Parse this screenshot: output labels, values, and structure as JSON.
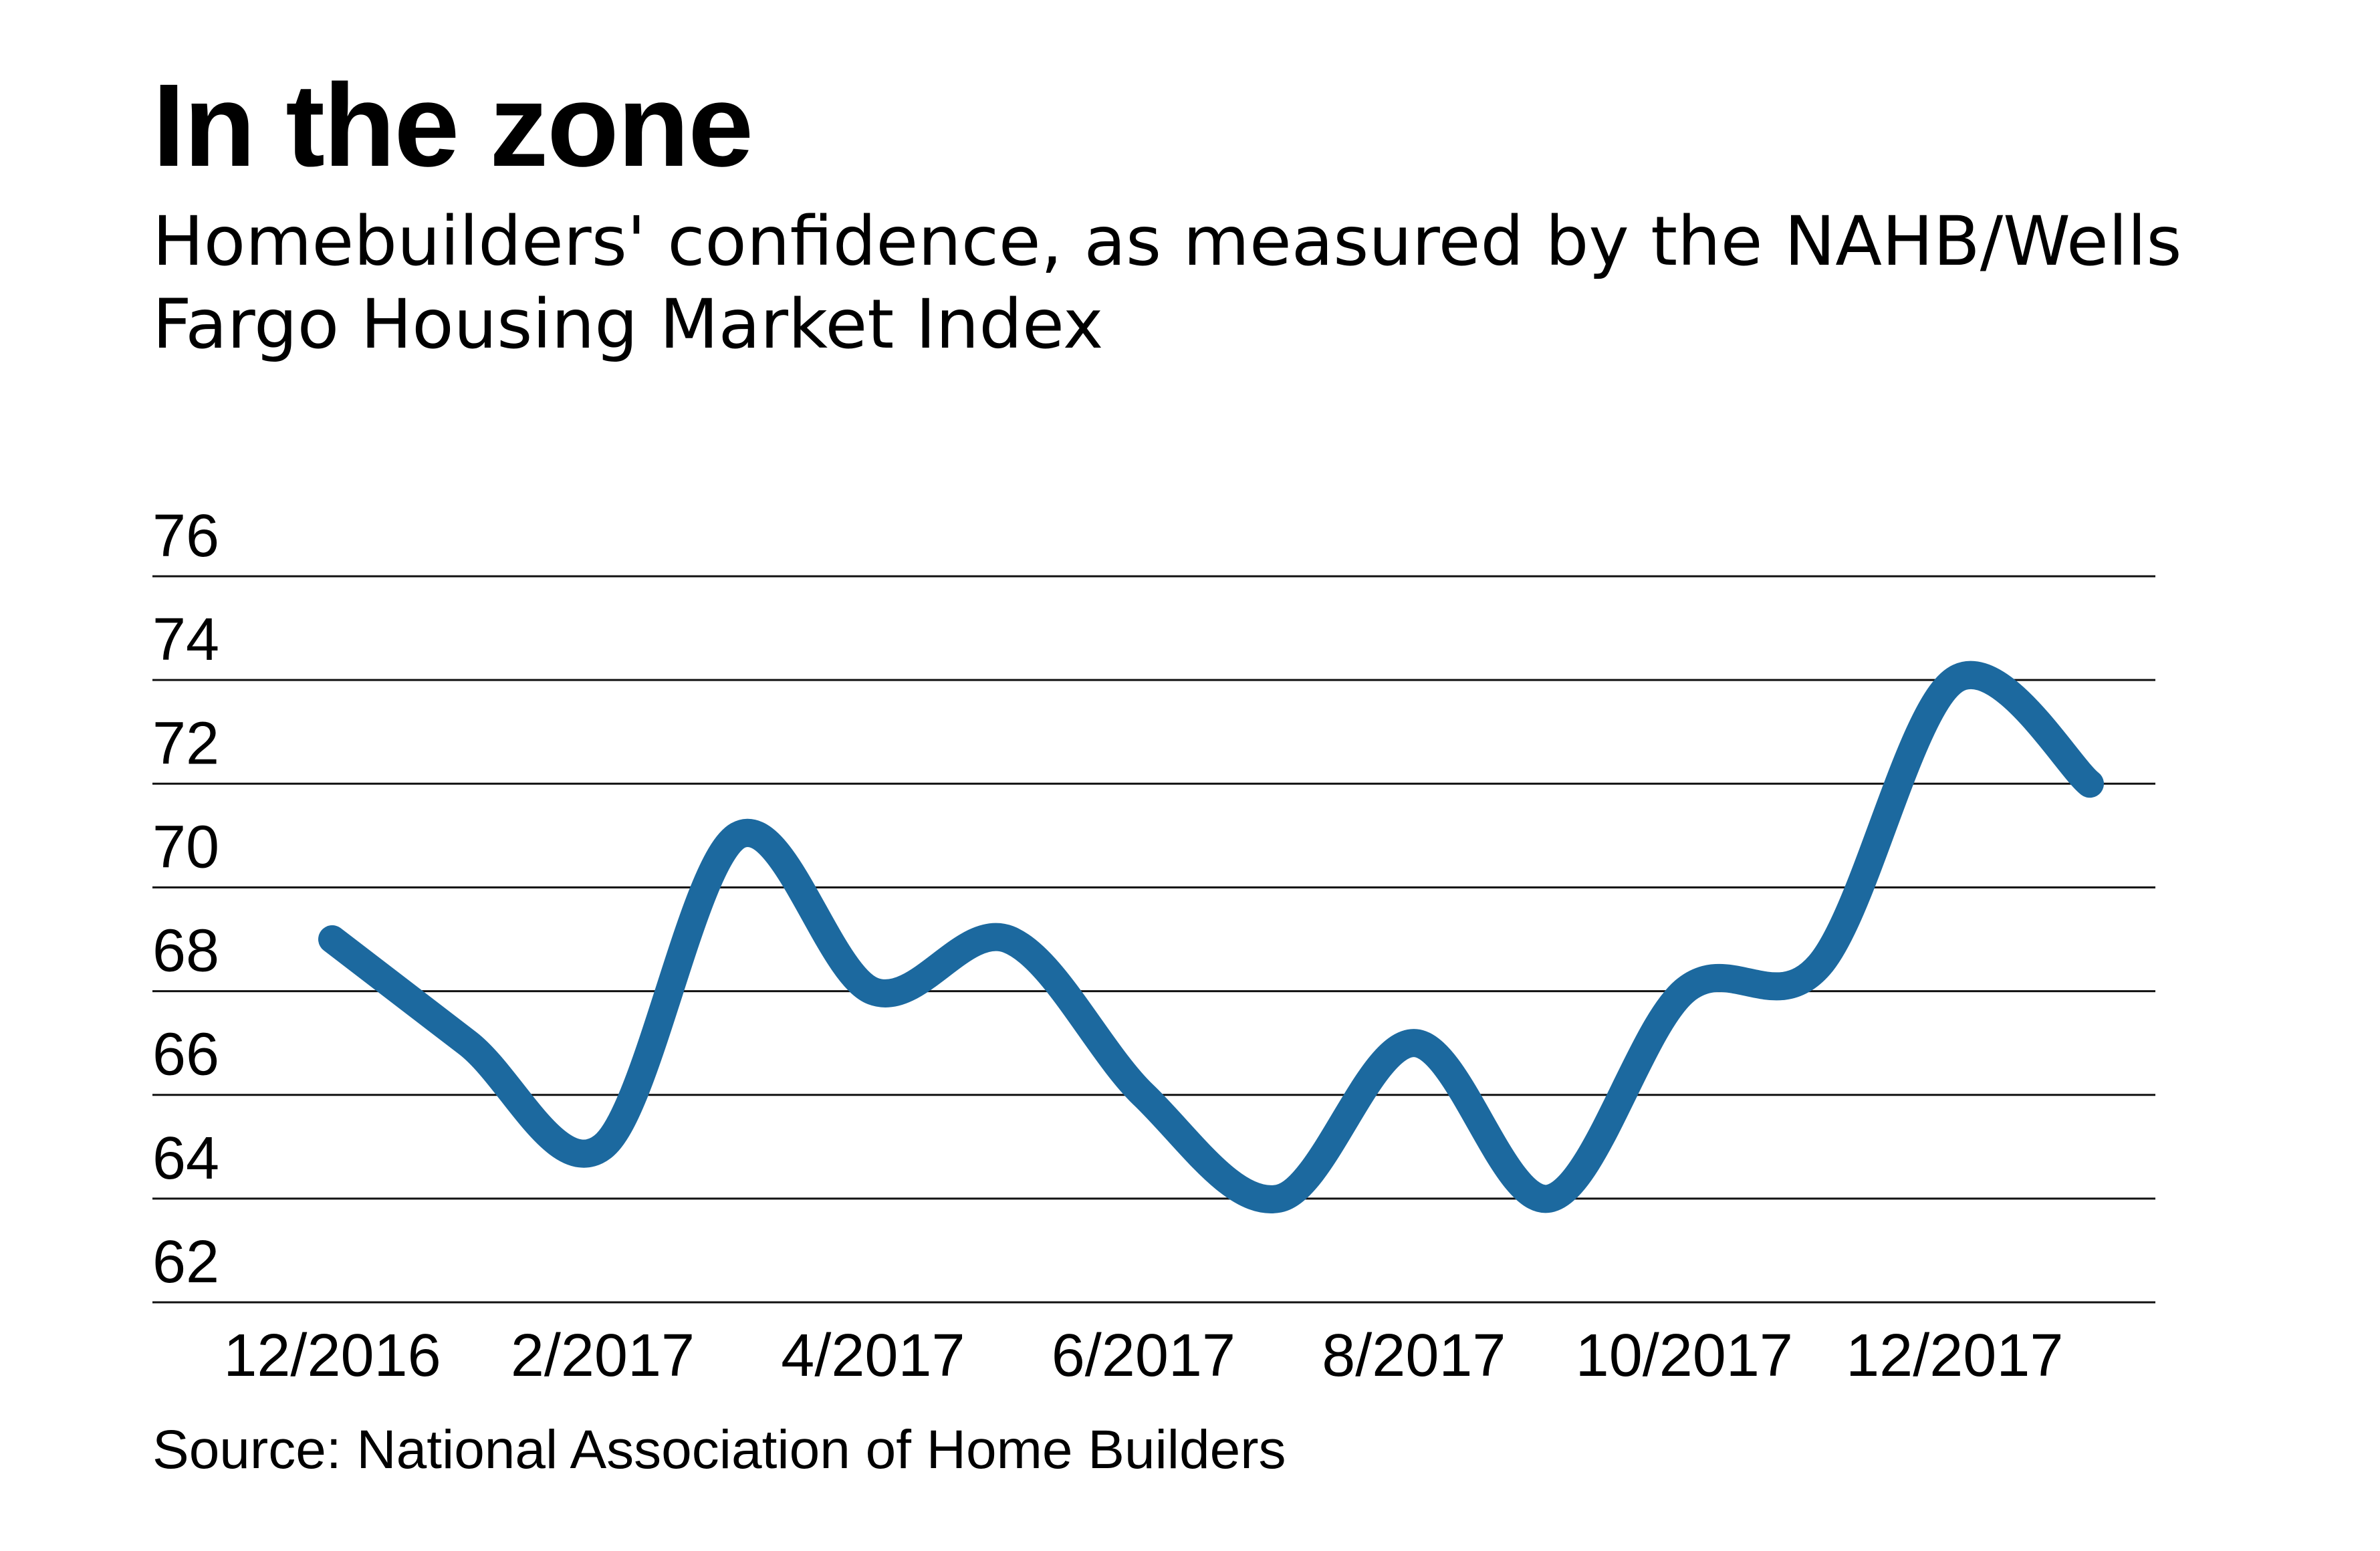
{
  "chart_data": {
    "type": "line",
    "title": "In the zone",
    "subtitle": "Homebuilders' confidence, as measured by the NAHB/Wells Fargo Housing Market Index",
    "source": "Source: National Association of Home Builders",
    "x": [
      "12/2016",
      "1/2017",
      "2/2017",
      "3/2017",
      "4/2017",
      "5/2017",
      "6/2017",
      "7/2017",
      "8/2017",
      "9/2017",
      "10/2017",
      "11/2017",
      "12/2017",
      "1/2018"
    ],
    "x_tick_labels": [
      "12/2016",
      "2/2017",
      "4/2017",
      "6/2017",
      "8/2017",
      "10/2017",
      "12/2017"
    ],
    "series": [
      {
        "values": [
          69,
          67,
          65,
          71,
          68,
          69,
          66,
          64,
          67,
          64,
          68,
          68.5,
          74,
          72
        ],
        "color": "#1c699f"
      }
    ],
    "y_ticks": [
      62,
      64,
      66,
      68,
      70,
      72,
      74,
      76
    ],
    "ylim": [
      62,
      76
    ],
    "grid": true,
    "legend": "none",
    "xlabel": "",
    "ylabel": ""
  }
}
